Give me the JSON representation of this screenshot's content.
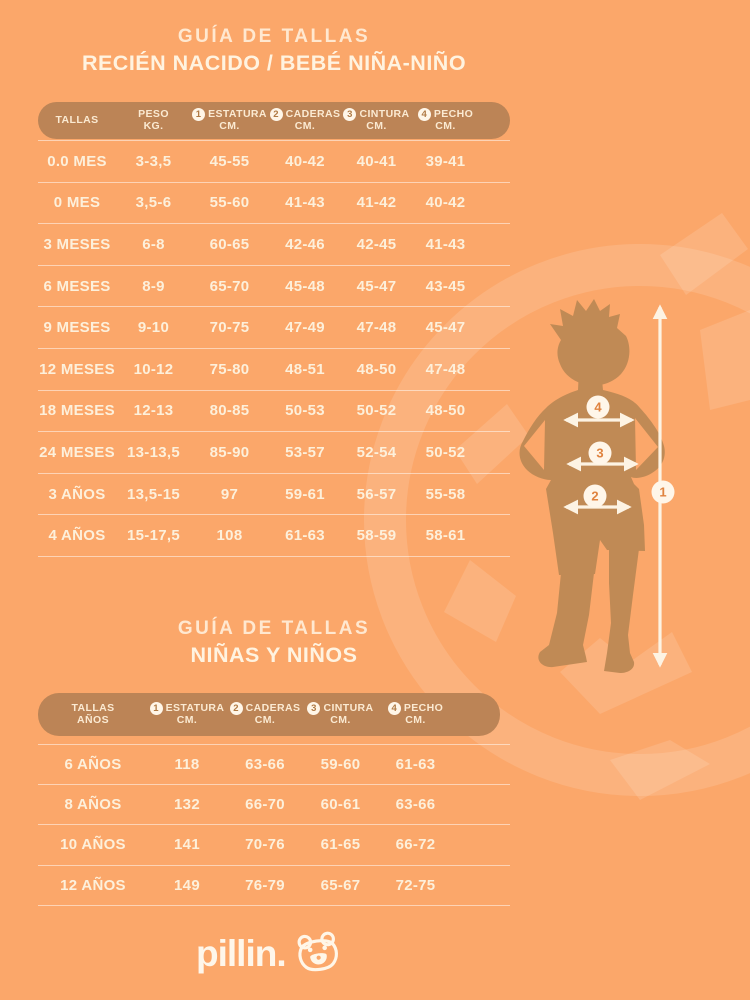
{
  "page": {
    "background_color": "#fba76a",
    "band_color": "#bc8456",
    "text_color": "#fdf0db",
    "silhouette_color": "#c08a55"
  },
  "section1": {
    "title_line1": "GUÍA DE TALLAS",
    "title_line2": "RECIÉN NACIDO / BEBÉ NIÑA-NIÑO",
    "table": {
      "headers": [
        {
          "num": "",
          "label": "TALLAS",
          "unit": ""
        },
        {
          "num": "",
          "label": "PESO",
          "unit": "KG."
        },
        {
          "num": "1",
          "label": "ESTATURA",
          "unit": "CM."
        },
        {
          "num": "2",
          "label": "CADERAS",
          "unit": "CM."
        },
        {
          "num": "3",
          "label": "CINTURA",
          "unit": "CM."
        },
        {
          "num": "4",
          "label": "PECHO",
          "unit": "CM."
        }
      ],
      "rows": [
        [
          "0.0 MES",
          "3-3,5",
          "45-55",
          "40-42",
          "40-41",
          "39-41"
        ],
        [
          "0 MES",
          "3,5-6",
          "55-60",
          "41-43",
          "41-42",
          "40-42"
        ],
        [
          "3 MESES",
          "6-8",
          "60-65",
          "42-46",
          "42-45",
          "41-43"
        ],
        [
          "6 MESES",
          "8-9",
          "65-70",
          "45-48",
          "45-47",
          "43-45"
        ],
        [
          "9 MESES",
          "9-10",
          "70-75",
          "47-49",
          "47-48",
          "45-47"
        ],
        [
          "12 MESES",
          "10-12",
          "75-80",
          "48-51",
          "48-50",
          "47-48"
        ],
        [
          "18 MESES",
          "12-13",
          "80-85",
          "50-53",
          "50-52",
          "48-50"
        ],
        [
          "24 MESES",
          "13-13,5",
          "85-90",
          "53-57",
          "52-54",
          "50-52"
        ],
        [
          "3 AÑOS",
          "13,5-15",
          "97",
          "59-61",
          "56-57",
          "55-58"
        ],
        [
          "4 AÑOS",
          "15-17,5",
          "108",
          "61-63",
          "58-59",
          "58-61"
        ]
      ]
    }
  },
  "section2": {
    "title_line1": "GUÍA DE TALLAS",
    "title_line2": "NIÑAS Y NIÑOS",
    "table": {
      "headers": [
        {
          "num": "",
          "label": "TALLAS",
          "unit": "AÑOS"
        },
        {
          "num": "1",
          "label": "ESTATURA",
          "unit": "CM."
        },
        {
          "num": "2",
          "label": "CADERAS",
          "unit": "CM."
        },
        {
          "num": "3",
          "label": "CINTURA",
          "unit": "CM."
        },
        {
          "num": "4",
          "label": "PECHO",
          "unit": "CM."
        }
      ],
      "rows": [
        [
          "6 AÑOS",
          "118",
          "63-66",
          "59-60",
          "61-63"
        ],
        [
          "8 AÑOS",
          "132",
          "66-70",
          "60-61",
          "63-66"
        ],
        [
          "10 AÑOS",
          "141",
          "70-76",
          "61-65",
          "66-72"
        ],
        [
          "12 AÑOS",
          "149",
          "76-79",
          "65-67",
          "72-75"
        ]
      ]
    }
  },
  "figure": {
    "markers": [
      {
        "num": "4"
      },
      {
        "num": "3"
      },
      {
        "num": "2"
      },
      {
        "num": "1"
      }
    ]
  },
  "footer": {
    "brand": "pillin."
  }
}
